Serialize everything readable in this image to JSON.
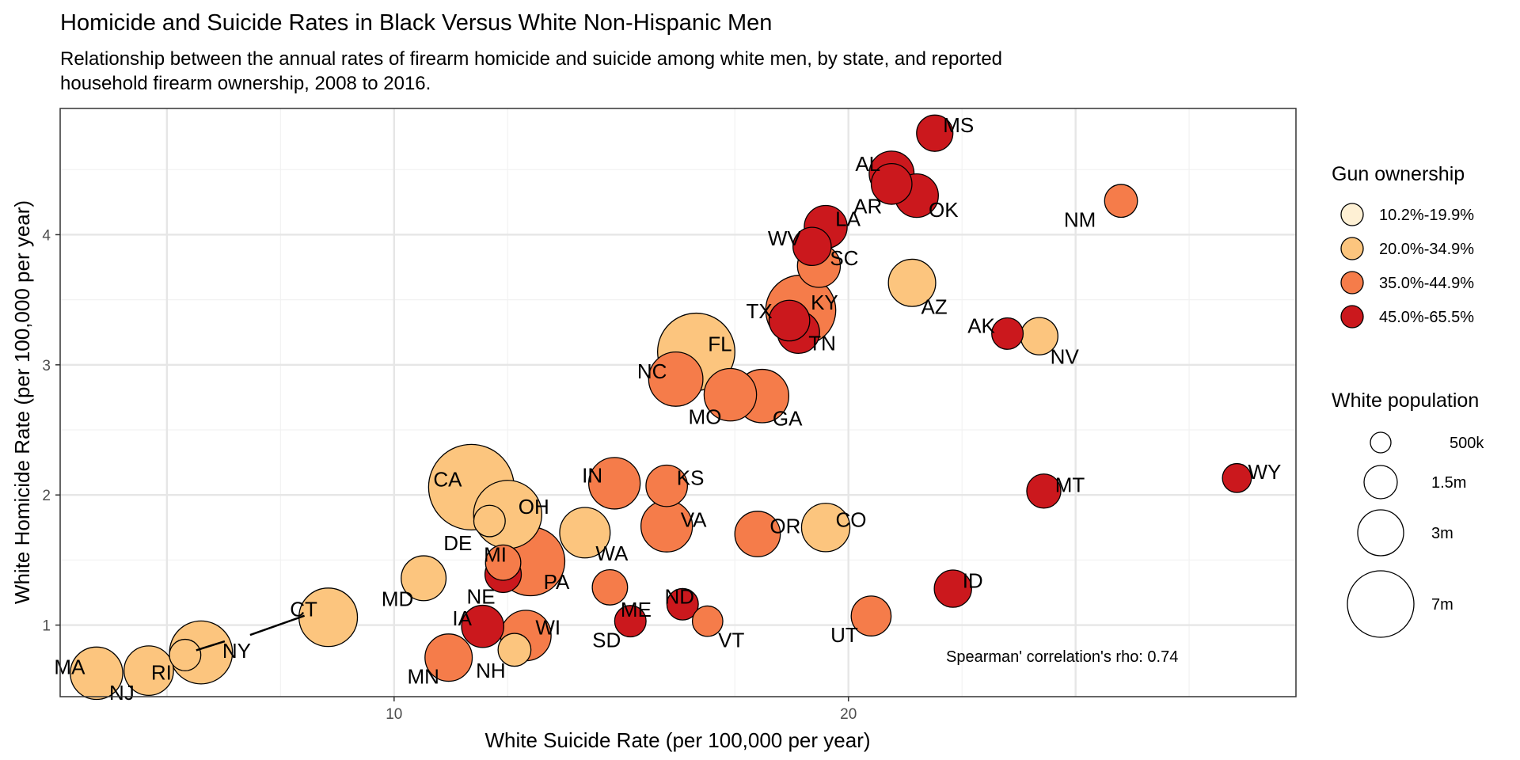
{
  "chart_data": {
    "type": "scatter",
    "title": "Homicide and Suicide Rates in Black Versus White Non-Hispanic Men",
    "subtitle_lines": [
      "Relationship between the annual rates of firearm homicide and suicide among white men, by state, and reported",
      "household firearm ownership, 2008 to 2016."
    ],
    "xlabel": "White Suicide Rate (per 100,000 per year)",
    "ylabel": "White Homicide Rate (per 100,000 per year)",
    "xlim": [
      2.65,
      29.85
    ],
    "ylim": [
      0.45,
      4.97
    ],
    "x_ticks": [
      10,
      20
    ],
    "y_ticks": [
      1,
      2,
      3,
      4
    ],
    "grid": true,
    "annotation": "Spearman' correlation's rho: 0.74",
    "legend_position": "right",
    "legend_color": {
      "title": "Gun ownership",
      "entries": [
        {
          "label": "10.2%-19.9%",
          "color": "#FEF0D4"
        },
        {
          "label": "20.0%-34.9%",
          "color": "#FCC57E"
        },
        {
          "label": "35.0%-44.9%",
          "color": "#F57C4A"
        },
        {
          "label": "45.0%-65.5%",
          "color": "#CB181D"
        }
      ]
    },
    "legend_size": {
      "title": "White population",
      "entries": [
        {
          "label": "500k",
          "value": 0.5
        },
        {
          "label": "1.5m",
          "value": 1.5
        },
        {
          "label": "3m",
          "value": 3
        },
        {
          "label": "7m",
          "value": 7
        }
      ]
    },
    "points": [
      {
        "state": "MS",
        "x": 21.9,
        "y": 4.78,
        "group": 3,
        "pop": 0.35
      },
      {
        "state": "AL",
        "x": 20.95,
        "y": 4.47,
        "group": 3,
        "pop": 0.9
      },
      {
        "state": "AR",
        "x": 20.95,
        "y": 4.39,
        "group": 3,
        "pop": 0.6
      },
      {
        "state": "OK",
        "x": 21.5,
        "y": 4.3,
        "group": 3,
        "pop": 0.8
      },
      {
        "state": "NM",
        "x": 26.0,
        "y": 4.26,
        "group": 2,
        "pop": 0.2
      },
      {
        "state": "LA",
        "x": 19.5,
        "y": 4.06,
        "group": 3,
        "pop": 0.75
      },
      {
        "state": "WV",
        "x": 19.2,
        "y": 3.91,
        "group": 3,
        "pop": 0.45
      },
      {
        "state": "SC",
        "x": 19.35,
        "y": 3.76,
        "group": 2,
        "pop": 0.75
      },
      {
        "state": "AZ",
        "x": 21.4,
        "y": 3.63,
        "group": 1,
        "pop": 1.1
      },
      {
        "state": "KY",
        "x": 18.95,
        "y": 3.42,
        "group": 2,
        "pop": 4.0
      },
      {
        "state": "TX",
        "x": 18.7,
        "y": 3.34,
        "group": 3,
        "pop": 0.6
      },
      {
        "state": "TN",
        "x": 18.9,
        "y": 3.25,
        "group": 3,
        "pop": 0.7
      },
      {
        "state": "AK",
        "x": 23.5,
        "y": 3.24,
        "group": 3,
        "pop": 0.15
      },
      {
        "state": "NV",
        "x": 24.2,
        "y": 3.22,
        "group": 1,
        "pop": 0.4
      },
      {
        "state": "FL",
        "x": 16.65,
        "y": 3.1,
        "group": 1,
        "pop": 5.3
      },
      {
        "state": "NC",
        "x": 16.2,
        "y": 2.89,
        "group": 2,
        "pop": 1.8
      },
      {
        "state": "MO",
        "x": 17.4,
        "y": 2.77,
        "group": 2,
        "pop": 1.6
      },
      {
        "state": "GA",
        "x": 18.1,
        "y": 2.76,
        "group": 2,
        "pop": 1.7
      },
      {
        "state": "WY",
        "x": 28.55,
        "y": 2.13,
        "group": 3,
        "pop": 0.08
      },
      {
        "state": "CA",
        "x": 11.7,
        "y": 2.06,
        "group": 1,
        "pop": 7.0
      },
      {
        "state": "IN",
        "x": 14.85,
        "y": 2.09,
        "group": 2,
        "pop": 1.5
      },
      {
        "state": "KS",
        "x": 16.0,
        "y": 2.07,
        "group": 2,
        "pop": 0.65
      },
      {
        "state": "MT",
        "x": 24.3,
        "y": 2.03,
        "group": 3,
        "pop": 0.25
      },
      {
        "state": "OH",
        "x": 12.5,
        "y": 1.85,
        "group": 1,
        "pop": 3.7
      },
      {
        "state": "DE",
        "x": 12.1,
        "y": 1.8,
        "group": 1,
        "pop": 0.15
      },
      {
        "state": "VA",
        "x": 16.0,
        "y": 1.76,
        "group": 2,
        "pop": 1.5
      },
      {
        "state": "CO",
        "x": 19.5,
        "y": 1.75,
        "group": 1,
        "pop": 1.2
      },
      {
        "state": "WA",
        "x": 14.2,
        "y": 1.71,
        "group": 1,
        "pop": 1.4
      },
      {
        "state": "OR",
        "x": 18.0,
        "y": 1.7,
        "group": 2,
        "pop": 0.95
      },
      {
        "state": "PA",
        "x": 13.0,
        "y": 1.49,
        "group": 2,
        "pop": 3.8
      },
      {
        "state": "MI",
        "x": 12.4,
        "y": 1.48,
        "group": 2,
        "pop": 0.3
      },
      {
        "state": "NE",
        "x": 12.4,
        "y": 1.39,
        "group": 3,
        "pop": 0.35
      },
      {
        "state": "MD",
        "x": 10.65,
        "y": 1.36,
        "group": 1,
        "pop": 0.9
      },
      {
        "state": "ID",
        "x": 22.3,
        "y": 1.28,
        "group": 3,
        "pop": 0.4
      },
      {
        "state": "ME",
        "x": 14.75,
        "y": 1.29,
        "group": 2,
        "pop": 0.3
      },
      {
        "state": "ND",
        "x": 16.35,
        "y": 1.16,
        "group": 3,
        "pop": 0.15
      },
      {
        "state": "CT",
        "x": 8.55,
        "y": 1.06,
        "group": 1,
        "pop": 2.3
      },
      {
        "state": "UT",
        "x": 20.5,
        "y": 1.07,
        "group": 2,
        "pop": 0.55
      },
      {
        "state": "SD",
        "x": 15.2,
        "y": 1.03,
        "group": 3,
        "pop": 0.15
      },
      {
        "state": "VT",
        "x": 16.9,
        "y": 1.03,
        "group": 2,
        "pop": 0.12
      },
      {
        "state": "IA",
        "x": 11.95,
        "y": 0.99,
        "group": 3,
        "pop": 0.7
      },
      {
        "state": "WI",
        "x": 12.9,
        "y": 0.92,
        "group": 2,
        "pop": 1.4
      },
      {
        "state": "NH",
        "x": 12.65,
        "y": 0.81,
        "group": 1,
        "pop": 0.2
      },
      {
        "state": "NY",
        "x": 5.75,
        "y": 0.79,
        "group": 1,
        "pop": 2.9
      },
      {
        "state": "RI",
        "x": 5.4,
        "y": 0.77,
        "group": 1,
        "pop": 0.15
      },
      {
        "state": "MN",
        "x": 11.2,
        "y": 0.75,
        "group": 2,
        "pop": 1.1
      },
      {
        "state": "NJ",
        "x": 4.6,
        "y": 0.65,
        "group": 1,
        "pop": 1.3
      },
      {
        "state": "MA",
        "x": 3.45,
        "y": 0.63,
        "group": 1,
        "pop": 1.6
      }
    ]
  }
}
